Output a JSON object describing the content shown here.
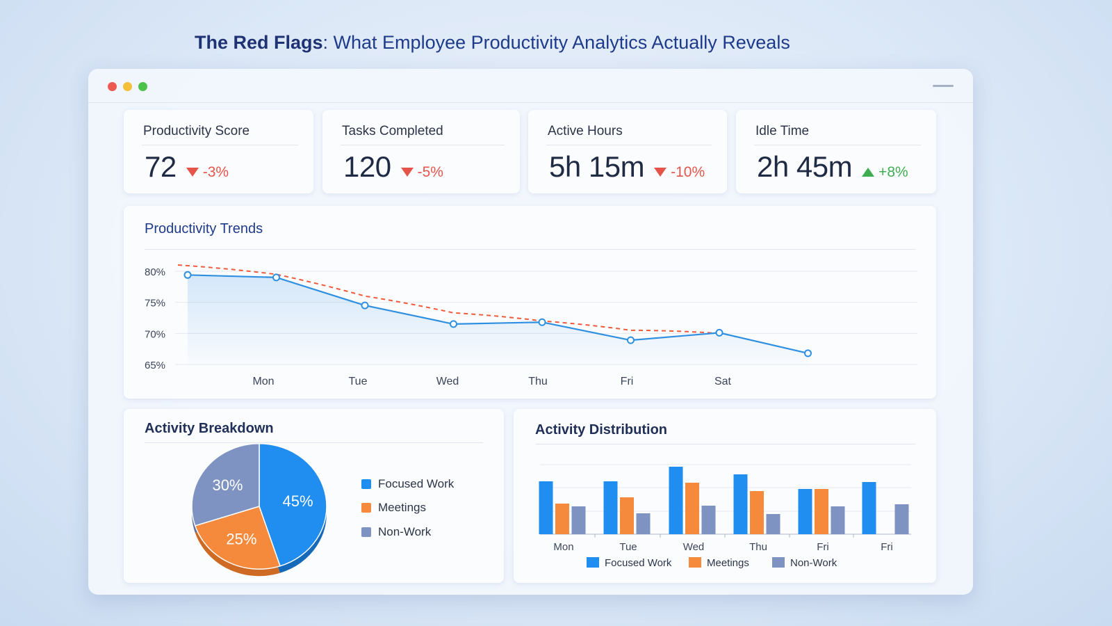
{
  "page": {
    "title_bold": "The Red Flags",
    "title_rest": ": What Employee Productivity Analytics Actually Reveals"
  },
  "colors": {
    "focused": "#1f8ef0",
    "meetings": "#f58a3c",
    "nonwork": "#7f93c2",
    "trend_line": "#2f8fe0",
    "trend_dashed": "#ee5a3a",
    "negative": "#e5544a",
    "positive": "#3fae52"
  },
  "kpis": [
    {
      "label": "Productivity Score",
      "value": "72",
      "delta": "-3%",
      "direction": "down"
    },
    {
      "label": "Tasks Completed",
      "value": "120",
      "delta": "-5%",
      "direction": "down"
    },
    {
      "label": "Active Hours",
      "value": "5h 15m",
      "delta": "-10%",
      "direction": "down"
    },
    {
      "label": "Idle Time",
      "value": "2h 45m",
      "delta": "+8%",
      "direction": "up"
    }
  ],
  "trends": {
    "title": "Productivity Trends"
  },
  "breakdown": {
    "title": "Activity Breakdown"
  },
  "distribution": {
    "title": "Activity Distribution"
  },
  "chart_data": [
    {
      "type": "line",
      "title": "Productivity Trends",
      "y_ticks": [
        "80%",
        "75%",
        "70%",
        "65%"
      ],
      "ylim": [
        65,
        81
      ],
      "x_labels": [
        "Mon",
        "Tue",
        "Wed",
        "Thu",
        "Fri",
        "Sat"
      ],
      "series": [
        {
          "name": "Productivity",
          "style": "solid-markers",
          "x": [
            0,
            1,
            2,
            3,
            4,
            5,
            6,
            7
          ],
          "values": [
            79.4,
            79.0,
            74.5,
            71.5,
            71.8,
            68.9,
            70.1,
            66.8
          ]
        },
        {
          "name": "Trend",
          "style": "dashed",
          "x": [
            0,
            1,
            2,
            3,
            4,
            5,
            6
          ],
          "values": [
            81.0,
            79.5,
            76.0,
            73.3,
            72.0,
            70.5,
            70.0
          ]
        }
      ]
    },
    {
      "type": "pie",
      "title": "Activity Breakdown",
      "slices": [
        {
          "label": "Focused Work",
          "value": 45,
          "text": "45%"
        },
        {
          "label": "Meetings",
          "value": 25,
          "text": "25%"
        },
        {
          "label": "Non-Work",
          "value": 30,
          "text": "30%"
        }
      ],
      "legend": [
        "Focused Work",
        "Meetings",
        "Non-Work"
      ]
    },
    {
      "type": "bar",
      "title": "Activity Distribution",
      "categories": [
        "Mon",
        "Tue",
        "Wed",
        "Thu",
        "Fri",
        "Fri"
      ],
      "ylim": [
        0,
        100
      ],
      "series": [
        {
          "name": "Focused Work",
          "values": [
            76,
            76,
            97,
            86,
            65,
            75
          ]
        },
        {
          "name": "Meetings",
          "values": [
            44,
            53,
            74,
            62,
            65,
            0
          ]
        },
        {
          "name": "Non-Work",
          "values": [
            40,
            30,
            41,
            29,
            40,
            43
          ]
        }
      ],
      "legend": [
        "Focused Work",
        "Meetings",
        "Non-Work"
      ]
    }
  ]
}
